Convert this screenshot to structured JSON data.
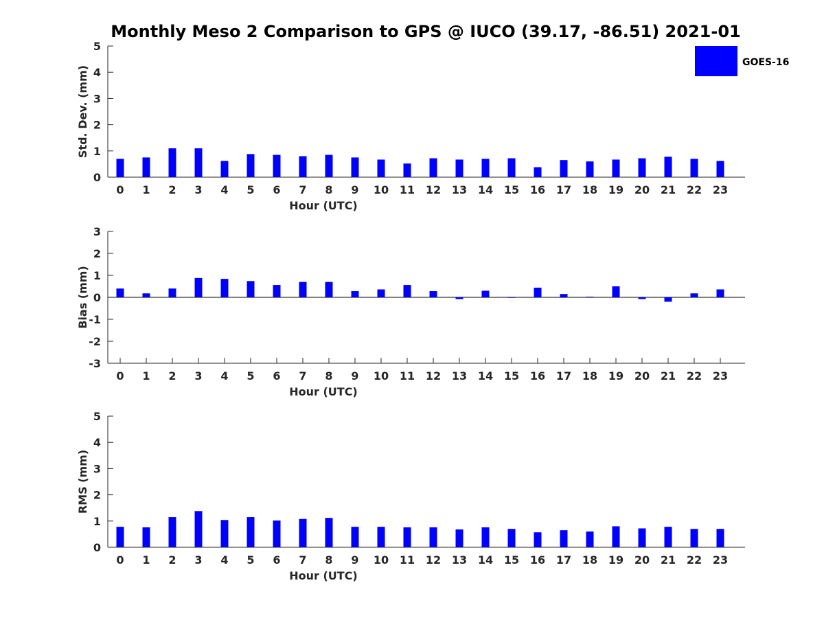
{
  "title": "Monthly Meso 2 Comparison to GPS @ IUCO (39.17, -86.51) 2021-01",
  "legend": {
    "label": "GOES-16",
    "color": "#0000ff",
    "placement": "top-right"
  },
  "chart_data": [
    {
      "type": "bar",
      "ylabel": "Std. Dev. (mm)",
      "xlabel": "Hour (UTC)",
      "ylim": [
        0,
        5
      ],
      "yticks": [
        "0",
        "1",
        "2",
        "3",
        "4",
        "5"
      ],
      "categories": [
        "0",
        "1",
        "2",
        "3",
        "4",
        "5",
        "6",
        "7",
        "8",
        "9",
        "10",
        "11",
        "12",
        "13",
        "14",
        "15",
        "16",
        "17",
        "18",
        "19",
        "20",
        "21",
        "22",
        "23"
      ],
      "series": [
        {
          "name": "GOES-16",
          "color": "#0000ff",
          "values": [
            0.7,
            0.75,
            1.1,
            1.1,
            0.62,
            0.88,
            0.85,
            0.8,
            0.85,
            0.75,
            0.67,
            0.52,
            0.72,
            0.67,
            0.7,
            0.72,
            0.38,
            0.65,
            0.6,
            0.67,
            0.72,
            0.78,
            0.7,
            0.62
          ]
        }
      ]
    },
    {
      "type": "bar",
      "ylabel": "Bias (mm)",
      "xlabel": "Hour (UTC)",
      "ylim": [
        -3,
        3
      ],
      "yticks": [
        "-3",
        "-2",
        "-1",
        "0",
        "1",
        "2",
        "3"
      ],
      "categories": [
        "0",
        "1",
        "2",
        "3",
        "4",
        "5",
        "6",
        "7",
        "8",
        "9",
        "10",
        "11",
        "12",
        "13",
        "14",
        "15",
        "16",
        "17",
        "18",
        "19",
        "20",
        "21",
        "22",
        "23"
      ],
      "series": [
        {
          "name": "GOES-16",
          "color": "#0000ff",
          "values": [
            0.4,
            0.18,
            0.4,
            0.88,
            0.84,
            0.74,
            0.56,
            0.7,
            0.7,
            0.28,
            0.36,
            0.56,
            0.28,
            -0.08,
            0.3,
            -0.02,
            0.44,
            0.15,
            0.03,
            0.5,
            -0.08,
            -0.2,
            0.18,
            0.36
          ]
        }
      ]
    },
    {
      "type": "bar",
      "ylabel": "RMS (mm)",
      "xlabel": "Hour (UTC)",
      "ylim": [
        0,
        5
      ],
      "yticks": [
        "0",
        "1",
        "2",
        "3",
        "4",
        "5"
      ],
      "categories": [
        "0",
        "1",
        "2",
        "3",
        "4",
        "5",
        "6",
        "7",
        "8",
        "9",
        "10",
        "11",
        "12",
        "13",
        "14",
        "15",
        "16",
        "17",
        "18",
        "19",
        "20",
        "21",
        "22",
        "23"
      ],
      "series": [
        {
          "name": "GOES-16",
          "color": "#0000ff",
          "values": [
            0.78,
            0.76,
            1.15,
            1.38,
            1.04,
            1.15,
            1.02,
            1.08,
            1.12,
            0.78,
            0.78,
            0.76,
            0.76,
            0.68,
            0.76,
            0.7,
            0.57,
            0.65,
            0.6,
            0.8,
            0.72,
            0.78,
            0.7,
            0.7
          ]
        }
      ]
    }
  ]
}
